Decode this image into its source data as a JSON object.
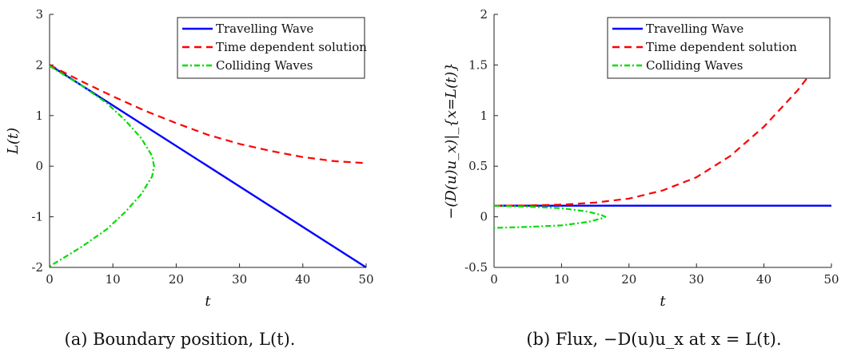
{
  "chart_data": [
    {
      "type": "line",
      "caption": "(a) Boundary position, L(t).",
      "xlabel": "t",
      "ylabel": "L(t)",
      "xlim": [
        0,
        50
      ],
      "ylim": [
        -2,
        3
      ],
      "xticks": [
        "0",
        "10",
        "20",
        "30",
        "40",
        "50"
      ],
      "yticks": [
        "-2",
        "-1",
        "0",
        "1",
        "2",
        "3"
      ],
      "grid": false,
      "legend": "top-right",
      "series": [
        {
          "name": "Travelling Wave",
          "color": "#0000ff",
          "style": "solid",
          "x": [
            0,
            50
          ],
          "y": [
            2,
            -2
          ]
        },
        {
          "name": "Time dependent solution",
          "color": "#ff0000",
          "style": "dashed",
          "x": [
            0,
            5,
            10,
            15,
            20,
            25,
            30,
            35,
            40,
            45,
            50
          ],
          "y": [
            2.0,
            1.68,
            1.38,
            1.1,
            0.85,
            0.62,
            0.44,
            0.3,
            0.18,
            0.1,
            0.06
          ]
        },
        {
          "name": "Colliding Waves",
          "color": "#00dd00",
          "style": "dashdot",
          "x": [
            0,
            5,
            9,
            12,
            14.5,
            16.2,
            16.5,
            16.2,
            14.5,
            12,
            9,
            5,
            0
          ],
          "y": [
            1.98,
            1.6,
            1.25,
            0.9,
            0.55,
            0.2,
            0.0,
            -0.2,
            -0.55,
            -0.9,
            -1.25,
            -1.6,
            -1.98
          ]
        }
      ]
    },
    {
      "type": "line",
      "caption": "(b) Flux, −D(u)u_x at x = L(t).",
      "xlabel": "t",
      "ylabel": "−(D(u)u_x)|_{x=L(t)}",
      "xlim": [
        0,
        50
      ],
      "ylim": [
        -0.5,
        2
      ],
      "xticks": [
        "0",
        "10",
        "20",
        "30",
        "40",
        "50"
      ],
      "yticks": [
        "-0.5",
        "0",
        "0.5",
        "1",
        "1.5",
        "2"
      ],
      "grid": false,
      "legend": "top-right",
      "series": [
        {
          "name": "Travelling Wave",
          "color": "#0000ff",
          "style": "solid",
          "x": [
            0,
            50
          ],
          "y": [
            0.11,
            0.11
          ]
        },
        {
          "name": "Time dependent solution",
          "color": "#ff0000",
          "style": "dashed",
          "x": [
            0,
            5,
            10,
            15,
            20,
            25,
            30,
            35,
            40,
            45,
            50
          ],
          "y": [
            0.11,
            0.112,
            0.12,
            0.14,
            0.18,
            0.26,
            0.39,
            0.6,
            0.89,
            1.25,
            1.68
          ]
        },
        {
          "name": "Colliding Waves",
          "color": "#00dd00",
          "style": "dashdot",
          "x": [
            0,
            5,
            10,
            14,
            16,
            16.5,
            16,
            14,
            10,
            5,
            0
          ],
          "y": [
            0.11,
            0.1,
            0.085,
            0.05,
            0.015,
            0.0,
            -0.015,
            -0.05,
            -0.085,
            -0.1,
            -0.11
          ]
        }
      ]
    }
  ]
}
